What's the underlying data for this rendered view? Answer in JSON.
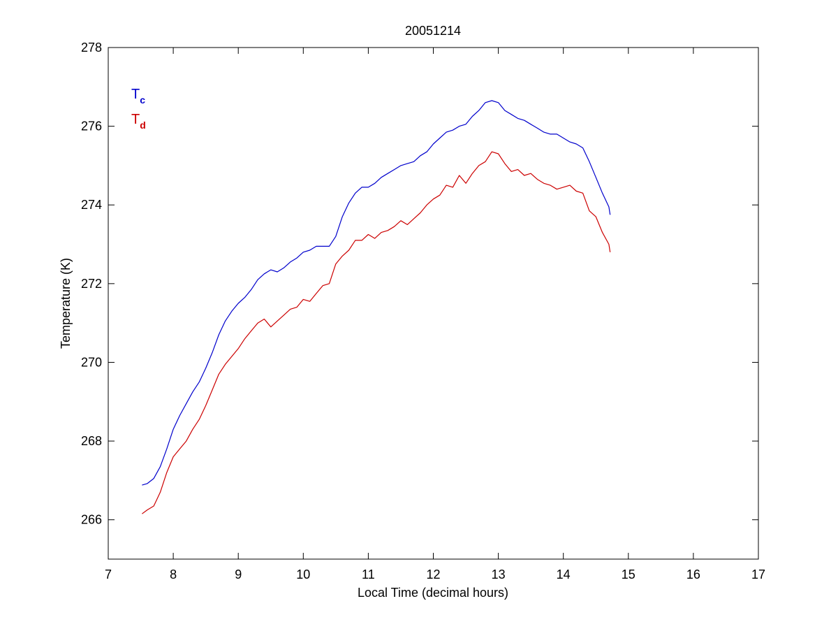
{
  "chart_data": {
    "type": "line",
    "title": "20051214",
    "xlabel": "Local Time (decimal hours)",
    "ylabel": "Temperature (K)",
    "xlim": [
      7,
      17
    ],
    "ylim": [
      265,
      278
    ],
    "xticks": [
      7,
      8,
      9,
      10,
      11,
      12,
      13,
      14,
      15,
      16,
      17
    ],
    "yticks": [
      266,
      268,
      270,
      272,
      274,
      276,
      278
    ],
    "grid": false,
    "legend_position": "top-left",
    "series": [
      {
        "name": "T",
        "subscript": "c",
        "color": "#0000cc",
        "points": [
          [
            7.52,
            266.88
          ],
          [
            7.6,
            266.92
          ],
          [
            7.7,
            267.05
          ],
          [
            7.8,
            267.35
          ],
          [
            7.9,
            267.8
          ],
          [
            8.0,
            268.3
          ],
          [
            8.1,
            268.65
          ],
          [
            8.2,
            268.95
          ],
          [
            8.3,
            269.25
          ],
          [
            8.4,
            269.5
          ],
          [
            8.5,
            269.85
          ],
          [
            8.6,
            270.25
          ],
          [
            8.7,
            270.7
          ],
          [
            8.8,
            271.05
          ],
          [
            8.9,
            271.3
          ],
          [
            9.0,
            271.5
          ],
          [
            9.1,
            271.65
          ],
          [
            9.2,
            271.85
          ],
          [
            9.3,
            272.1
          ],
          [
            9.4,
            272.25
          ],
          [
            9.5,
            272.35
          ],
          [
            9.6,
            272.3
          ],
          [
            9.7,
            272.4
          ],
          [
            9.8,
            272.55
          ],
          [
            9.9,
            272.65
          ],
          [
            10.0,
            272.8
          ],
          [
            10.1,
            272.85
          ],
          [
            10.2,
            272.95
          ],
          [
            10.3,
            272.95
          ],
          [
            10.4,
            272.95
          ],
          [
            10.5,
            273.2
          ],
          [
            10.6,
            273.7
          ],
          [
            10.7,
            274.05
          ],
          [
            10.8,
            274.3
          ],
          [
            10.9,
            274.45
          ],
          [
            11.0,
            274.45
          ],
          [
            11.1,
            274.55
          ],
          [
            11.2,
            274.7
          ],
          [
            11.3,
            274.8
          ],
          [
            11.4,
            274.9
          ],
          [
            11.5,
            275.0
          ],
          [
            11.6,
            275.05
          ],
          [
            11.7,
            275.1
          ],
          [
            11.8,
            275.25
          ],
          [
            11.9,
            275.35
          ],
          [
            12.0,
            275.55
          ],
          [
            12.1,
            275.7
          ],
          [
            12.2,
            275.85
          ],
          [
            12.3,
            275.9
          ],
          [
            12.4,
            276.0
          ],
          [
            12.5,
            276.05
          ],
          [
            12.6,
            276.25
          ],
          [
            12.7,
            276.4
          ],
          [
            12.8,
            276.6
          ],
          [
            12.9,
            276.65
          ],
          [
            13.0,
            276.6
          ],
          [
            13.1,
            276.4
          ],
          [
            13.2,
            276.3
          ],
          [
            13.3,
            276.2
          ],
          [
            13.4,
            276.15
          ],
          [
            13.5,
            276.05
          ],
          [
            13.6,
            275.95
          ],
          [
            13.7,
            275.85
          ],
          [
            13.8,
            275.8
          ],
          [
            13.9,
            275.8
          ],
          [
            14.0,
            275.7
          ],
          [
            14.1,
            275.6
          ],
          [
            14.2,
            275.55
          ],
          [
            14.3,
            275.45
          ],
          [
            14.4,
            275.1
          ],
          [
            14.5,
            274.7
          ],
          [
            14.6,
            274.3
          ],
          [
            14.7,
            273.95
          ],
          [
            14.72,
            273.75
          ]
        ]
      },
      {
        "name": "T",
        "subscript": "d",
        "color": "#cc0000",
        "points": [
          [
            7.52,
            266.15
          ],
          [
            7.6,
            266.25
          ],
          [
            7.7,
            266.35
          ],
          [
            7.8,
            266.7
          ],
          [
            7.9,
            267.2
          ],
          [
            8.0,
            267.6
          ],
          [
            8.1,
            267.8
          ],
          [
            8.2,
            268.0
          ],
          [
            8.3,
            268.3
          ],
          [
            8.4,
            268.55
          ],
          [
            8.5,
            268.9
          ],
          [
            8.6,
            269.3
          ],
          [
            8.7,
            269.7
          ],
          [
            8.8,
            269.95
          ],
          [
            8.9,
            270.15
          ],
          [
            9.0,
            270.35
          ],
          [
            9.1,
            270.6
          ],
          [
            9.2,
            270.8
          ],
          [
            9.3,
            271.0
          ],
          [
            9.4,
            271.1
          ],
          [
            9.5,
            270.9
          ],
          [
            9.6,
            271.05
          ],
          [
            9.7,
            271.2
          ],
          [
            9.8,
            271.35
          ],
          [
            9.9,
            271.4
          ],
          [
            10.0,
            271.6
          ],
          [
            10.1,
            271.55
          ],
          [
            10.2,
            271.75
          ],
          [
            10.3,
            271.95
          ],
          [
            10.4,
            272.0
          ],
          [
            10.5,
            272.5
          ],
          [
            10.6,
            272.7
          ],
          [
            10.7,
            272.85
          ],
          [
            10.8,
            273.1
          ],
          [
            10.9,
            273.1
          ],
          [
            11.0,
            273.25
          ],
          [
            11.1,
            273.15
          ],
          [
            11.2,
            273.3
          ],
          [
            11.3,
            273.35
          ],
          [
            11.4,
            273.45
          ],
          [
            11.5,
            273.6
          ],
          [
            11.6,
            273.5
          ],
          [
            11.7,
            273.65
          ],
          [
            11.8,
            273.8
          ],
          [
            11.9,
            274.0
          ],
          [
            12.0,
            274.15
          ],
          [
            12.1,
            274.25
          ],
          [
            12.2,
            274.5
          ],
          [
            12.3,
            274.45
          ],
          [
            12.4,
            274.75
          ],
          [
            12.5,
            274.55
          ],
          [
            12.6,
            274.8
          ],
          [
            12.7,
            275.0
          ],
          [
            12.8,
            275.1
          ],
          [
            12.9,
            275.35
          ],
          [
            13.0,
            275.3
          ],
          [
            13.1,
            275.05
          ],
          [
            13.2,
            274.85
          ],
          [
            13.3,
            274.9
          ],
          [
            13.4,
            274.75
          ],
          [
            13.5,
            274.8
          ],
          [
            13.6,
            274.65
          ],
          [
            13.7,
            274.55
          ],
          [
            13.8,
            274.5
          ],
          [
            13.9,
            274.4
          ],
          [
            14.0,
            274.45
          ],
          [
            14.1,
            274.5
          ],
          [
            14.2,
            274.35
          ],
          [
            14.3,
            274.3
          ],
          [
            14.4,
            273.85
          ],
          [
            14.5,
            273.7
          ],
          [
            14.6,
            273.3
          ],
          [
            14.7,
            273.0
          ],
          [
            14.72,
            272.8
          ]
        ]
      }
    ]
  }
}
